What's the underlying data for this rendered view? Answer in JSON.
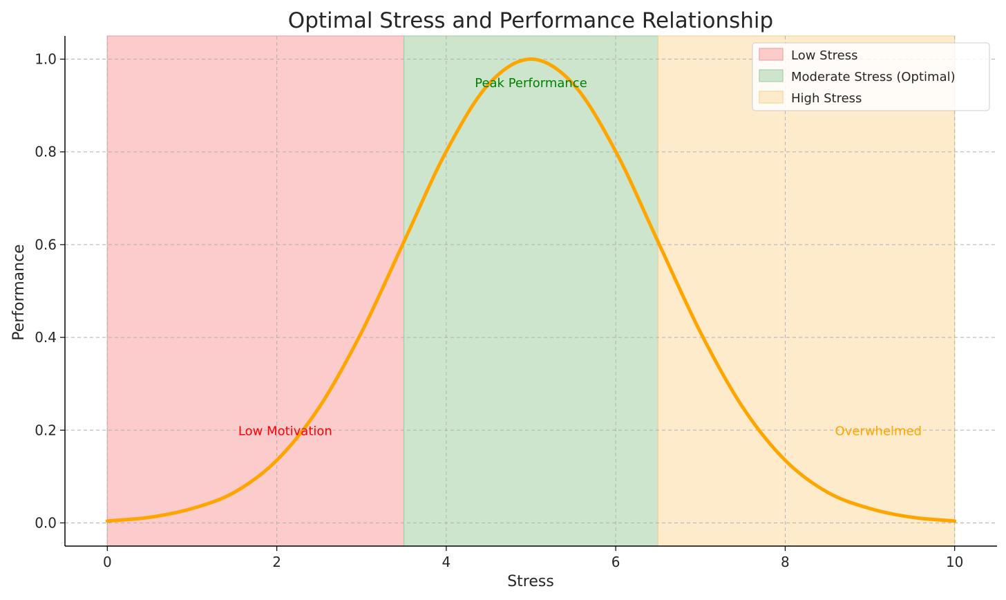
{
  "chart_data": {
    "type": "line",
    "title": "Optimal Stress and Performance Relationship",
    "xlabel": "Stress",
    "ylabel": "Performance",
    "xlim": [
      -0.5,
      10.5
    ],
    "ylim": [
      -0.05,
      1.05
    ],
    "x_ticks": [
      0,
      2,
      4,
      6,
      8,
      10
    ],
    "x_tick_labels": [
      "0",
      "2",
      "4",
      "6",
      "8",
      "10"
    ],
    "y_ticks": [
      0.0,
      0.2,
      0.4,
      0.6,
      0.8,
      1.0
    ],
    "y_tick_labels": [
      "0.0",
      "0.2",
      "0.4",
      "0.6",
      "0.8",
      "1.0"
    ],
    "grid": true,
    "legend_position": "top-right",
    "curve": {
      "color": "#ffa500",
      "x": [
        0,
        0.5,
        1,
        1.5,
        2,
        2.5,
        3,
        3.5,
        4,
        4.5,
        5,
        5.5,
        6,
        6.5,
        7,
        7.5,
        8,
        8.5,
        9,
        9.5,
        10
      ],
      "y": [
        0.004,
        0.012,
        0.031,
        0.066,
        0.135,
        0.249,
        0.411,
        0.606,
        0.801,
        0.946,
        1.0,
        0.946,
        0.801,
        0.606,
        0.411,
        0.249,
        0.135,
        0.066,
        0.031,
        0.012,
        0.004
      ]
    },
    "regions": [
      {
        "name": "Low Stress",
        "x_start": 0,
        "x_end": 3.5,
        "color": "#fccbcb",
        "edge": "#f4a3a3"
      },
      {
        "name": "Moderate Stress (Optimal)",
        "x_start": 3.5,
        "x_end": 6.5,
        "color": "#cde5cc",
        "edge": "#a6cfa4"
      },
      {
        "name": "High Stress",
        "x_start": 6.5,
        "x_end": 10,
        "color": "#feebcb",
        "edge": "#f6d59a"
      }
    ],
    "annotations": [
      {
        "text": "Peak Performance",
        "x": 5,
        "y": 0.95,
        "color": "#008000"
      },
      {
        "text": "Low Motivation",
        "x": 2.1,
        "y": 0.2,
        "color": "#ff0000"
      },
      {
        "text": "Overwhelmed",
        "x": 9.1,
        "y": 0.2,
        "color": "#ffa500"
      }
    ]
  }
}
